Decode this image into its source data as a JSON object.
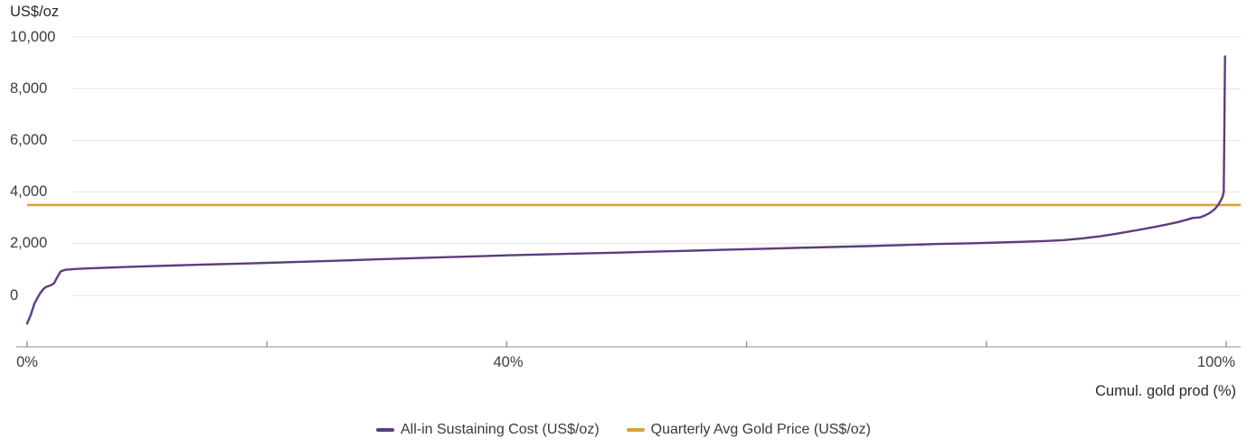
{
  "chart_data": {
    "type": "line",
    "title": "",
    "ylabel": "US$/oz",
    "xlabel": "Cumul. gold prod (%)",
    "ylim": [
      -2000,
      10000
    ],
    "xlim": [
      0,
      100
    ],
    "grid": "horizontal",
    "legend_position": "bottom-center",
    "style": {
      "grid_color": "#e4e4e4",
      "axis_color": "#a3a3a3",
      "tick_color": "#8c8c8c",
      "text_color": "#3d3d3d"
    },
    "yticks": [
      {
        "value": 10000,
        "label": "10,000"
      },
      {
        "value": 8000,
        "label": "8,000"
      },
      {
        "value": 6000,
        "label": "6,000"
      },
      {
        "value": 4000,
        "label": "4,000"
      },
      {
        "value": 2000,
        "label": "2,000"
      },
      {
        "value": 0,
        "label": "0"
      }
    ],
    "xticks": [
      {
        "value": 0,
        "label": "0%"
      },
      {
        "value": 20,
        "label": ""
      },
      {
        "value": 40,
        "label": "40%"
      },
      {
        "value": 60,
        "label": ""
      },
      {
        "value": 80,
        "label": ""
      },
      {
        "value": 100,
        "label": "100%"
      }
    ],
    "series": [
      {
        "name": "All-in Sustaining Cost (US$/oz)",
        "type": "line",
        "color": "#5e3c7f",
        "points": [
          [
            0,
            -1090
          ],
          [
            0.3,
            -760
          ],
          [
            0.6,
            -320
          ],
          [
            0.9,
            -70
          ],
          [
            1.1,
            90
          ],
          [
            1.35,
            240
          ],
          [
            1.6,
            330
          ],
          [
            1.95,
            385
          ],
          [
            2.25,
            470
          ],
          [
            2.5,
            690
          ],
          [
            2.8,
            930
          ],
          [
            3.2,
            990
          ],
          [
            4,
            1020
          ],
          [
            5,
            1042
          ],
          [
            6,
            1060
          ],
          [
            8,
            1095
          ],
          [
            10,
            1125
          ],
          [
            12,
            1155
          ],
          [
            14,
            1182
          ],
          [
            16,
            1205
          ],
          [
            18,
            1232
          ],
          [
            20,
            1258
          ],
          [
            23,
            1302
          ],
          [
            26,
            1342
          ],
          [
            29,
            1390
          ],
          [
            32,
            1438
          ],
          [
            35,
            1480
          ],
          [
            38,
            1518
          ],
          [
            40,
            1548
          ],
          [
            43,
            1583
          ],
          [
            46,
            1618
          ],
          [
            49,
            1652
          ],
          [
            52,
            1688
          ],
          [
            55,
            1724
          ],
          [
            58,
            1762
          ],
          [
            61,
            1798
          ],
          [
            64,
            1836
          ],
          [
            67,
            1872
          ],
          [
            70,
            1905
          ],
          [
            73,
            1948
          ],
          [
            76,
            1988
          ],
          [
            79,
            2018
          ],
          [
            81,
            2044
          ],
          [
            83,
            2072
          ],
          [
            85,
            2104
          ],
          [
            86.5,
            2140
          ],
          [
            88,
            2208
          ],
          [
            89.5,
            2288
          ],
          [
            91,
            2398
          ],
          [
            92.5,
            2518
          ],
          [
            93.8,
            2628
          ],
          [
            95,
            2738
          ],
          [
            96,
            2838
          ],
          [
            96.7,
            2928
          ],
          [
            97.2,
            2998
          ],
          [
            97.8,
            3018
          ],
          [
            98.2,
            3088
          ],
          [
            98.6,
            3178
          ],
          [
            99,
            3318
          ],
          [
            99.3,
            3478
          ],
          [
            99.5,
            3638
          ],
          [
            99.7,
            3818
          ],
          [
            99.8,
            4000
          ],
          [
            99.9,
            9250
          ]
        ]
      },
      {
        "name": "Quarterly Avg Gold Price (US$/oz)",
        "type": "hline",
        "color": "#d9a23c",
        "value": 3500
      }
    ]
  }
}
